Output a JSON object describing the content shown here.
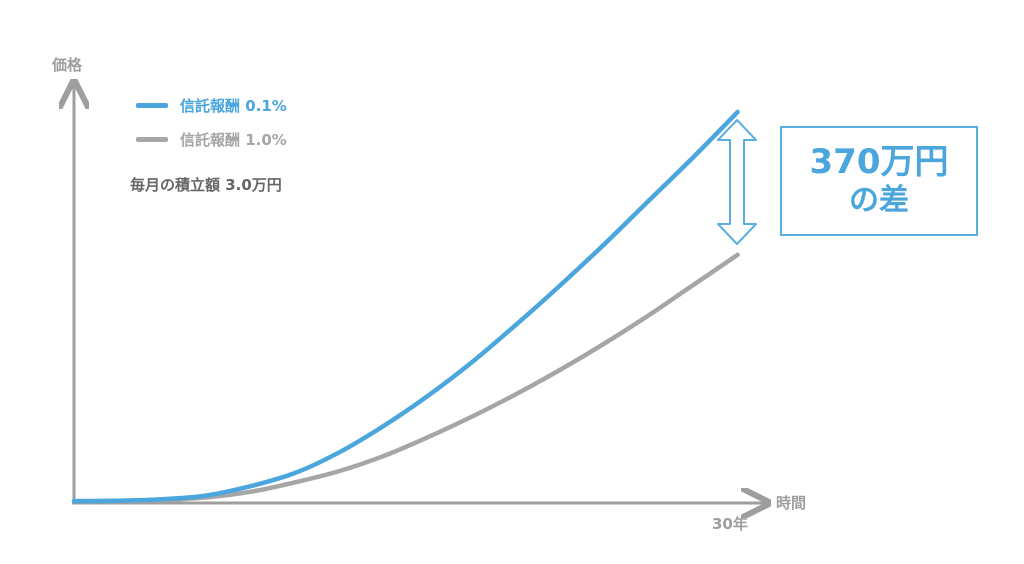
{
  "chart_data": {
    "type": "line",
    "ylabel": "価格",
    "xlabel": "時間",
    "x_tick_labels": [
      "30年"
    ],
    "series": [
      {
        "name": "信託報酬 0.1%",
        "color": "#4aa6dd",
        "x": [
          0,
          2,
          4,
          6,
          8,
          10,
          12,
          14,
          16,
          18,
          20,
          22,
          24,
          26,
          28,
          30
        ],
        "values": [
          1,
          1.2,
          2,
          4,
          9,
          16,
          27,
          41,
          57,
          75,
          95,
          116,
          138,
          161,
          184,
          208
        ]
      },
      {
        "name": "信託報酬 1.0%",
        "color": "#a6a6a6",
        "x": [
          0,
          2,
          4,
          6,
          8,
          10,
          12,
          14,
          16,
          18,
          20,
          22,
          24,
          26,
          28,
          30
        ],
        "values": [
          1,
          1.1,
          1.6,
          3,
          6,
          11,
          17,
          25,
          35,
          46,
          58,
          71,
          85,
          100,
          116,
          132
        ]
      }
    ],
    "annotation": {
      "amount": "370万円",
      "caption": "の差"
    },
    "note": "毎月の積立額 3.0万円",
    "xlim": [
      0,
      33
    ],
    "ylim": [
      0,
      225
    ],
    "grid": false,
    "legend_position": "top-left"
  },
  "colors": {
    "accent": "#4aa6dd",
    "secondary": "#a6a6a6",
    "axis": "#9e9e9e"
  }
}
